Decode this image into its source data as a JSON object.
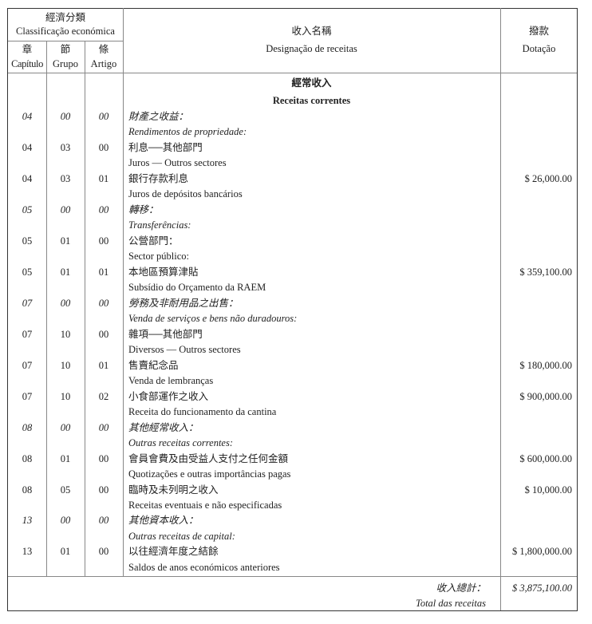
{
  "header": {
    "classification_cn": "經濟分類",
    "classification_pt": "Classificação económica",
    "chapter_cn": "章",
    "chapter_pt": "Capítulo",
    "group_cn": "節",
    "group_pt": "Grupo",
    "article_cn": "條",
    "article_pt": "Artigo",
    "designation_cn": "收入名稱",
    "designation_pt": "Designação de receitas",
    "allocation_cn": "撥款",
    "allocation_pt": "Dotação"
  },
  "section": {
    "cn": "經常收入",
    "pt": "Receitas correntes"
  },
  "rows": [
    {
      "cap": "04",
      "grp": "00",
      "art": "00",
      "cn": "財產之收益：",
      "pt": "Rendimentos de propriedade:",
      "amount": "",
      "italic": true
    },
    {
      "cap": "04",
      "grp": "03",
      "art": "00",
      "cn": "利息──其他部門",
      "pt": "Juros — Outros sectores",
      "amount": ""
    },
    {
      "cap": "04",
      "grp": "03",
      "art": "01",
      "cn": "銀行存款利息",
      "pt": "Juros de depósitos bancários",
      "amount": "$ 26,000.00"
    },
    {
      "cap": "05",
      "grp": "00",
      "art": "00",
      "cn": "轉移：",
      "pt": "Transferências:",
      "amount": "",
      "italic": true
    },
    {
      "cap": "05",
      "grp": "01",
      "art": "00",
      "cn": "公營部門：",
      "pt": "Sector público:",
      "amount": ""
    },
    {
      "cap": "05",
      "grp": "01",
      "art": "01",
      "cn": "本地區預算津貼",
      "pt": "Subsídio do Orçamento da RAEM",
      "amount": "$ 359,100.00"
    },
    {
      "cap": "07",
      "grp": "00",
      "art": "00",
      "cn": "勞務及非耐用品之出售：",
      "pt": "Venda de serviços e bens não duradouros:",
      "amount": "",
      "italic": true
    },
    {
      "cap": "07",
      "grp": "10",
      "art": "00",
      "cn": "雜項──其他部門",
      "pt": "Diversos — Outros sectores",
      "amount": ""
    },
    {
      "cap": "07",
      "grp": "10",
      "art": "01",
      "cn": "售賣紀念品",
      "pt": "Venda de lembranças",
      "amount": "$ 180,000.00"
    },
    {
      "cap": "07",
      "grp": "10",
      "art": "02",
      "cn": "小食部運作之收入",
      "pt": "Receita do funcionamento da cantina",
      "amount": "$ 900,000.00"
    },
    {
      "cap": "08",
      "grp": "00",
      "art": "00",
      "cn": "其他經常收入：",
      "pt": "Outras receitas correntes:",
      "amount": "",
      "italic": true
    },
    {
      "cap": "08",
      "grp": "01",
      "art": "00",
      "cn": "會員會費及由受益人支付之任何金額",
      "pt": "Quotizações e outras importâncias pagas",
      "amount": "$ 600,000.00"
    },
    {
      "cap": "08",
      "grp": "05",
      "art": "00",
      "cn": "臨時及未列明之收入",
      "pt": "Receitas eventuais e não especificadas",
      "amount": "$ 10,000.00"
    },
    {
      "cap": "13",
      "grp": "00",
      "art": "00",
      "cn": "其他資本收入：",
      "pt": "Outras receitas de capital:",
      "amount": "",
      "italic": true
    },
    {
      "cap": "13",
      "grp": "01",
      "art": "00",
      "cn": "以往經濟年度之結餘",
      "pt": "Saldos de anos económicos anteriores",
      "amount": "$ 1,800,000.00"
    }
  ],
  "total": {
    "cn": "收入總計：",
    "pt": "Total das receitas",
    "amount": "$ 3,875,100.00"
  }
}
